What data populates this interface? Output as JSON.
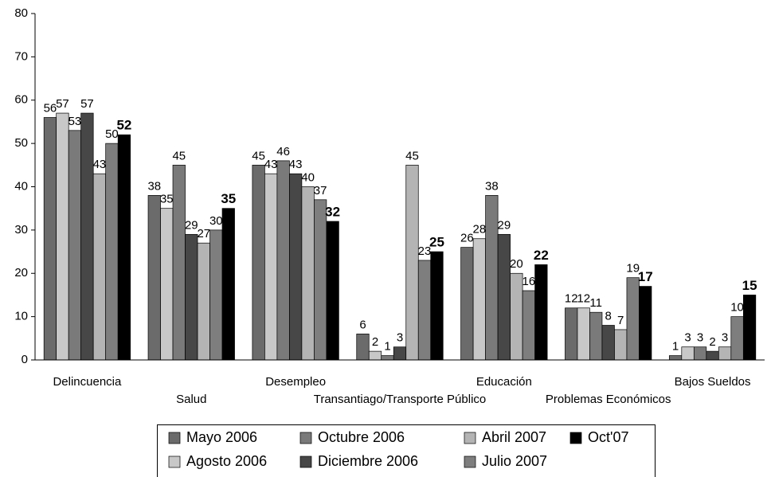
{
  "chart_data": {
    "type": "bar",
    "categories": [
      "Delincuencia",
      "Salud",
      "Desempleo",
      "Transantiago/Transporte Público",
      "Educación",
      "Problemas Económicos",
      "Bajos Sueldos"
    ],
    "series": [
      {
        "name": "Mayo 2006",
        "color": "#6b6b6b",
        "values": [
          56,
          38,
          45,
          6,
          26,
          12,
          1
        ]
      },
      {
        "name": "Agosto 2006",
        "color": "#c8c8c8",
        "values": [
          57,
          35,
          43,
          2,
          28,
          12,
          3
        ]
      },
      {
        "name": "Octubre 2006",
        "color": "#7a7a7a",
        "values": [
          53,
          45,
          46,
          1,
          38,
          11,
          3
        ]
      },
      {
        "name": "Diciembre 2006",
        "color": "#474747",
        "values": [
          57,
          29,
          43,
          3,
          29,
          8,
          2
        ]
      },
      {
        "name": "Abril 2007",
        "color": "#b4b4b4",
        "values": [
          43,
          27,
          40,
          45,
          20,
          7,
          3
        ]
      },
      {
        "name": "Julio 2007",
        "color": "#7e7e7e",
        "values": [
          50,
          30,
          37,
          23,
          16,
          19,
          10
        ]
      },
      {
        "name": "Oct'07",
        "color": "#000000",
        "values": [
          52,
          35,
          32,
          25,
          22,
          17,
          15
        ],
        "bold_labels": true
      }
    ],
    "ylim": [
      0,
      80
    ],
    "yticks": [
      0,
      10,
      20,
      30,
      40,
      50,
      60,
      70,
      80
    ],
    "grid": false,
    "legend": "bottom"
  }
}
